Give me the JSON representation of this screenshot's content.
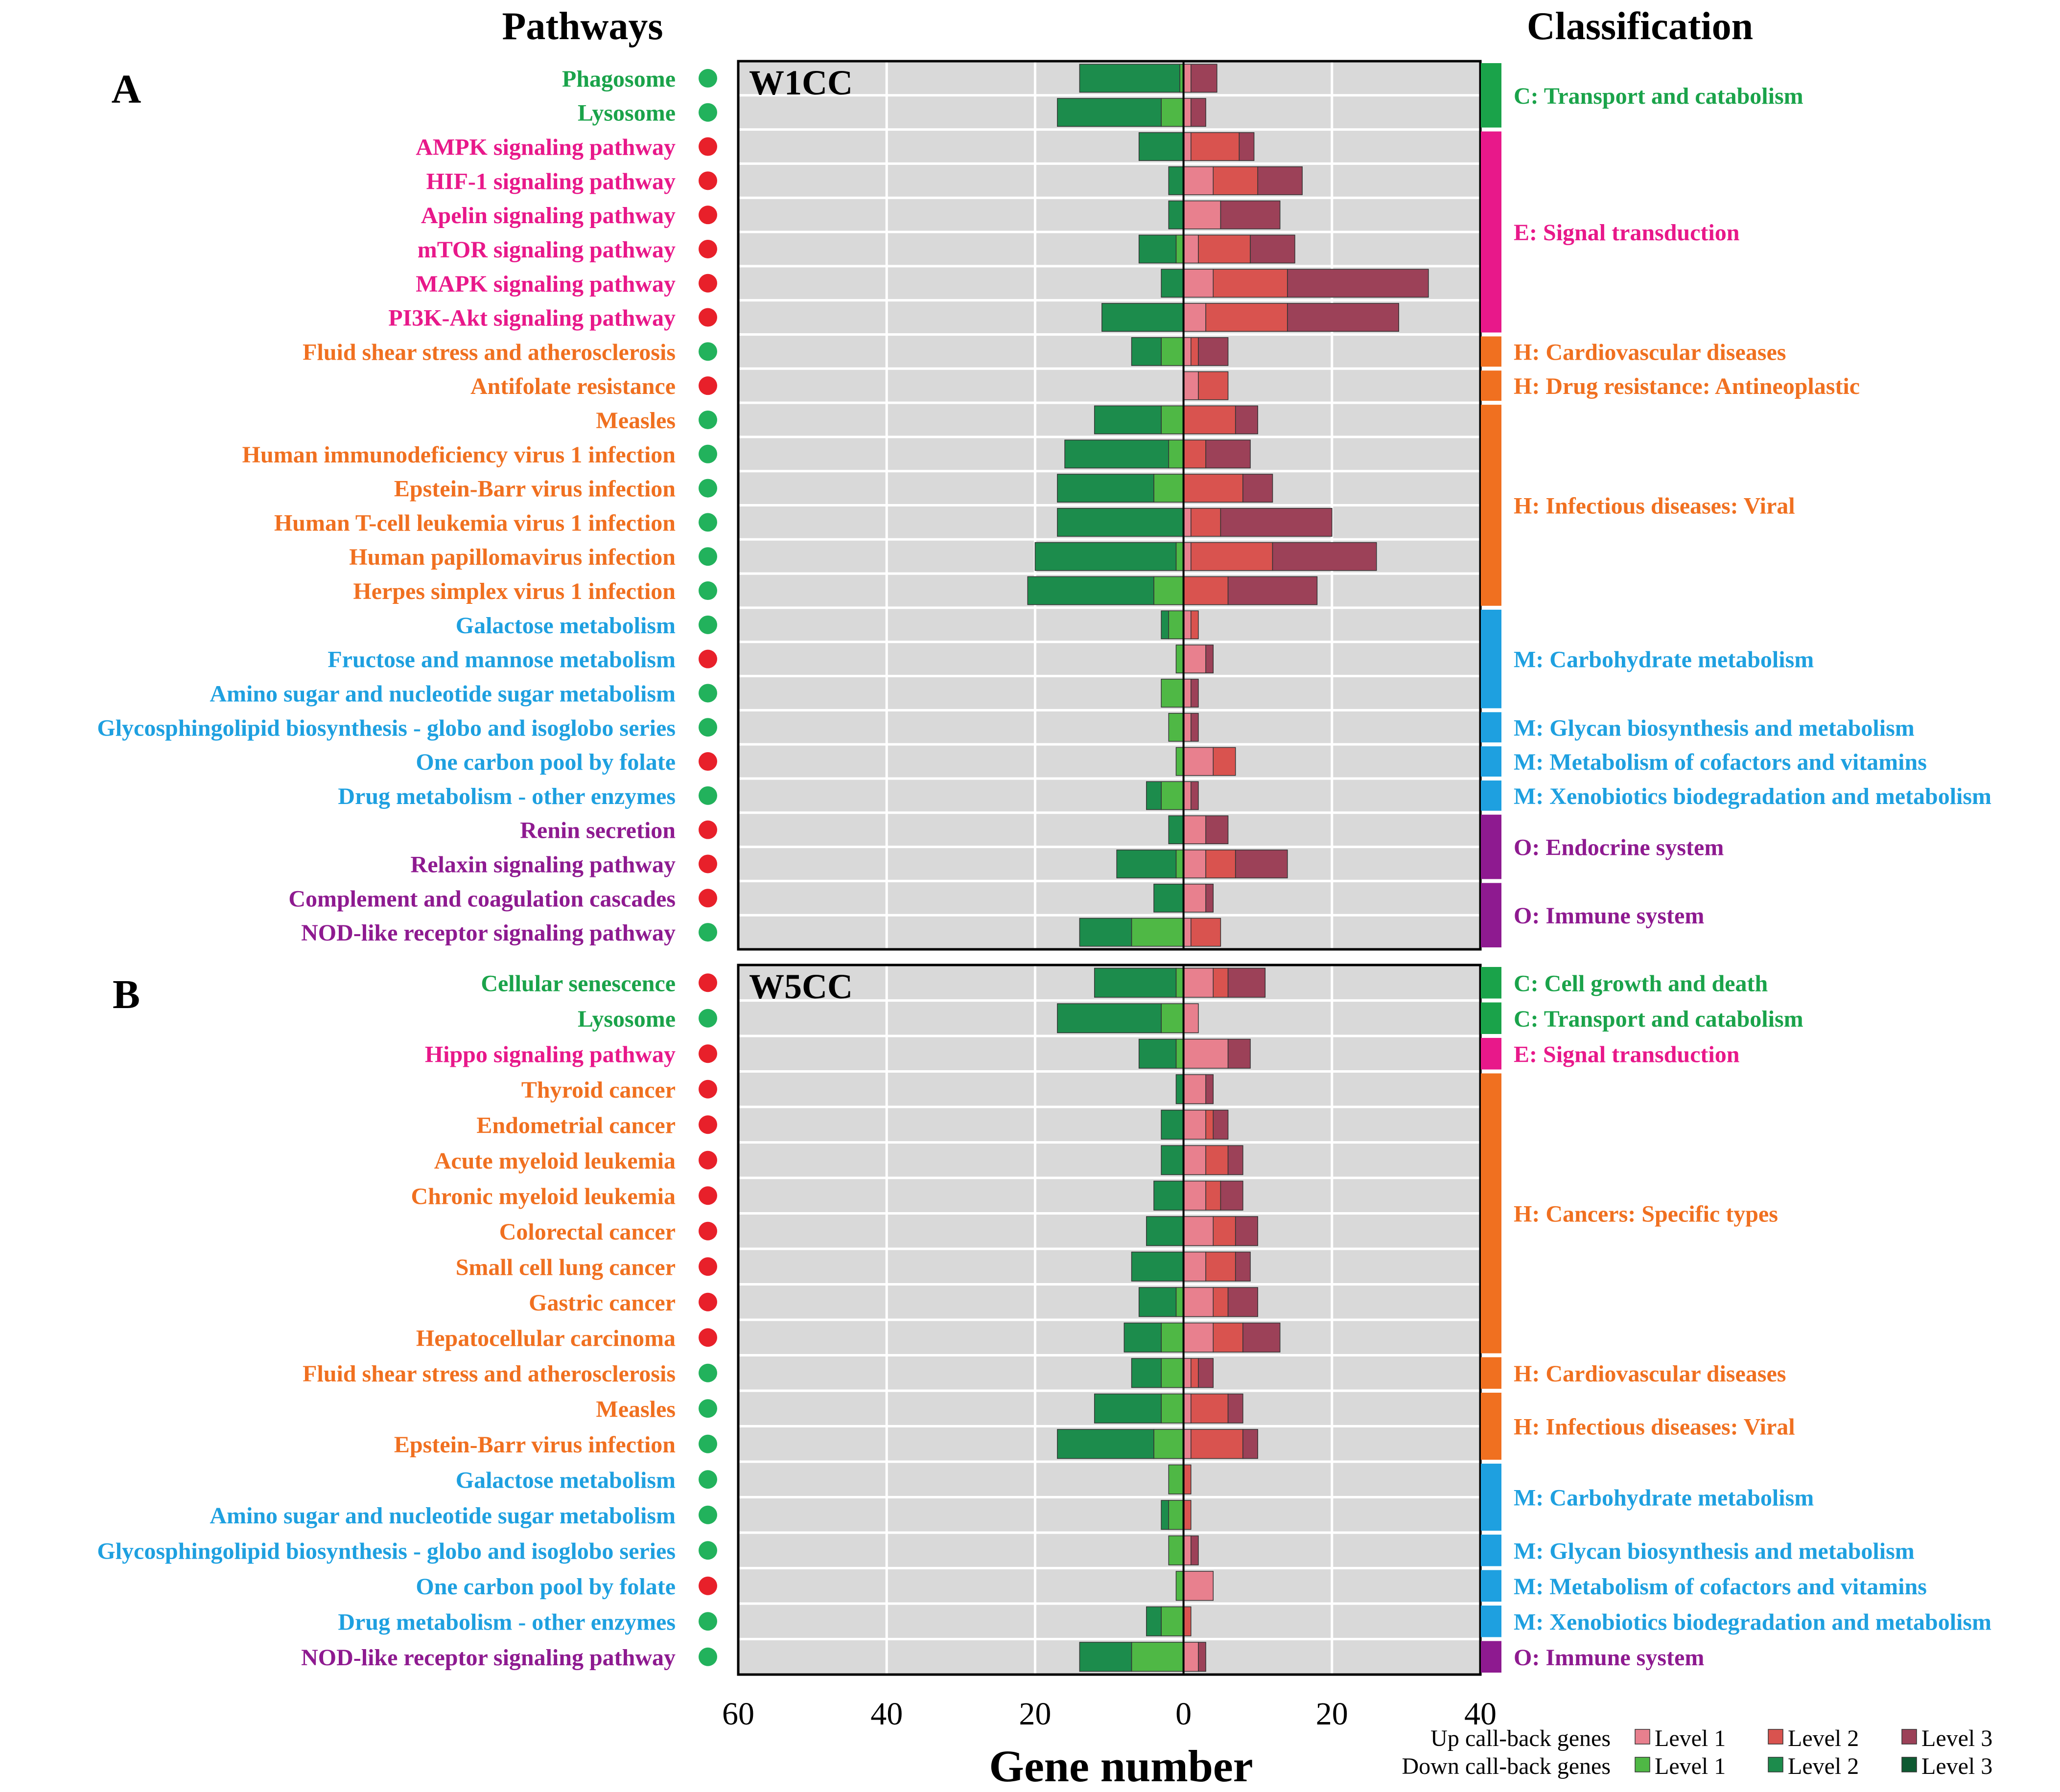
{
  "headers": {
    "pathways": "Pathways",
    "classification": "Classification"
  },
  "colors": {
    "green": "#1aa34a",
    "magenta": "#e8188a",
    "orange": "#f07020",
    "blue": "#1ea0e0",
    "purple": "#8e1a90",
    "dot_red": "#e8202a",
    "dot_green": "#22b25c",
    "plot_bg": "#d9d9d9",
    "up1": "#e8808e",
    "up2": "#d9534f",
    "up3": "#9c4158",
    "down1": "#4fb845",
    "down2": "#1c8c4c",
    "down3": "#0e5a32"
  },
  "chart_data": [
    {
      "type": "bar",
      "panel_letter": "A",
      "title": "W1CC",
      "xlabel": "Gene number",
      "xlim": [
        -60,
        40
      ],
      "x_tick_values": [
        -60,
        -40,
        -20,
        0,
        20,
        40
      ],
      "x_tick_labels": [
        "60",
        "40",
        "20",
        "0",
        "20",
        "40"
      ],
      "series": [
        "Up Level 1",
        "Up Level 2",
        "Up Level 3",
        "Down Level 1",
        "Down Level 2",
        "Down Level 3"
      ],
      "rows": [
        {
          "label": "Phagosome",
          "color": "green",
          "dot": "green",
          "down": [
            0.5,
            13.5,
            0
          ],
          "up": [
            1,
            0,
            3.5
          ]
        },
        {
          "label": "Lysosome",
          "color": "green",
          "dot": "green",
          "down": [
            3,
            14,
            0
          ],
          "up": [
            1,
            0,
            2
          ]
        },
        {
          "label": "AMPK signaling pathway",
          "color": "magenta",
          "dot": "red",
          "down": [
            0,
            6,
            0
          ],
          "up": [
            1,
            6.5,
            2
          ]
        },
        {
          "label": "HIF-1 signaling pathway",
          "color": "magenta",
          "dot": "red",
          "down": [
            0,
            2,
            0
          ],
          "up": [
            4,
            6,
            6
          ]
        },
        {
          "label": "Apelin signaling pathway",
          "color": "magenta",
          "dot": "red",
          "down": [
            0,
            2,
            0
          ],
          "up": [
            5,
            0,
            8
          ]
        },
        {
          "label": "mTOR signaling pathway",
          "color": "magenta",
          "dot": "red",
          "down": [
            1,
            5,
            0
          ],
          "up": [
            2,
            7,
            6
          ]
        },
        {
          "label": "MAPK signaling pathway",
          "color": "magenta",
          "dot": "red",
          "down": [
            0,
            3,
            0
          ],
          "up": [
            4,
            10,
            19
          ]
        },
        {
          "label": "PI3K-Akt signaling pathway",
          "color": "magenta",
          "dot": "red",
          "down": [
            0,
            11,
            0
          ],
          "up": [
            3,
            11,
            15
          ]
        },
        {
          "label": "Fluid shear stress and atherosclerosis",
          "color": "orange",
          "dot": "green",
          "down": [
            3,
            4,
            0
          ],
          "up": [
            1,
            1,
            4
          ]
        },
        {
          "label": "Antifolate resistance",
          "color": "orange",
          "dot": "red",
          "down": [
            0,
            0,
            0
          ],
          "up": [
            2,
            4,
            0
          ]
        },
        {
          "label": "Measles",
          "color": "orange",
          "dot": "green",
          "down": [
            3,
            9,
            0
          ],
          "up": [
            0,
            7,
            3
          ]
        },
        {
          "label": "Human immunodeficiency virus 1 infection",
          "color": "orange",
          "dot": "green",
          "down": [
            2,
            14,
            0
          ],
          "up": [
            0,
            3,
            6
          ]
        },
        {
          "label": "Epstein-Barr virus infection",
          "color": "orange",
          "dot": "green",
          "down": [
            4,
            13,
            0
          ],
          "up": [
            0,
            8,
            4
          ]
        },
        {
          "label": "Human T-cell leukemia virus 1 infection",
          "color": "orange",
          "dot": "green",
          "down": [
            0,
            17,
            0
          ],
          "up": [
            1,
            4,
            15
          ]
        },
        {
          "label": "Human papillomavirus infection",
          "color": "orange",
          "dot": "green",
          "down": [
            1,
            19,
            0
          ],
          "up": [
            1,
            11,
            14
          ]
        },
        {
          "label": "Herpes simplex virus 1 infection",
          "color": "orange",
          "dot": "green",
          "down": [
            4,
            17,
            0
          ],
          "up": [
            0,
            6,
            12
          ]
        },
        {
          "label": "Galactose metabolism",
          "color": "blue",
          "dot": "green",
          "down": [
            2,
            1,
            0
          ],
          "up": [
            1,
            1,
            0
          ]
        },
        {
          "label": "Fructose and mannose metabolism",
          "color": "blue",
          "dot": "red",
          "down": [
            1,
            0,
            0
          ],
          "up": [
            3,
            0,
            1
          ]
        },
        {
          "label": "Amino sugar and nucleotide sugar metabolism",
          "color": "blue",
          "dot": "green",
          "down": [
            3,
            0,
            0
          ],
          "up": [
            1,
            0,
            1
          ]
        },
        {
          "label": "Glycosphingolipid biosynthesis - globo and isoglobo series",
          "color": "blue",
          "dot": "green",
          "down": [
            2,
            0,
            0
          ],
          "up": [
            1,
            0,
            1
          ]
        },
        {
          "label": "One carbon pool by folate",
          "color": "blue",
          "dot": "red",
          "down": [
            1,
            0,
            0
          ],
          "up": [
            4,
            3,
            0
          ]
        },
        {
          "label": "Drug metabolism - other enzymes",
          "color": "blue",
          "dot": "green",
          "down": [
            3,
            2,
            0
          ],
          "up": [
            1,
            0,
            1
          ]
        },
        {
          "label": "Renin secretion",
          "color": "purple",
          "dot": "red",
          "down": [
            0,
            2,
            0
          ],
          "up": [
            3,
            0,
            3
          ]
        },
        {
          "label": "Relaxin signaling pathway",
          "color": "purple",
          "dot": "red",
          "down": [
            1,
            8,
            0
          ],
          "up": [
            3,
            4,
            7
          ]
        },
        {
          "label": "Complement and coagulation cascades",
          "color": "purple",
          "dot": "red",
          "down": [
            0,
            4,
            0
          ],
          "up": [
            3,
            0,
            1
          ]
        },
        {
          "label": "NOD-like receptor signaling pathway",
          "color": "purple",
          "dot": "green",
          "down": [
            7,
            7,
            0
          ],
          "up": [
            1,
            4,
            0
          ]
        }
      ],
      "groups": [
        {
          "label": "C: Transport and catabolism",
          "color": "green",
          "start": 0,
          "end": 1
        },
        {
          "label": "E: Signal transduction",
          "color": "magenta",
          "start": 2,
          "end": 7
        },
        {
          "label": "H: Cardiovascular diseases",
          "color": "orange",
          "start": 8,
          "end": 8
        },
        {
          "label": "H: Drug resistance: Antineoplastic",
          "color": "orange",
          "start": 9,
          "end": 9
        },
        {
          "label": "H: Infectious diseases: Viral",
          "color": "orange",
          "start": 10,
          "end": 15
        },
        {
          "label": "M: Carbohydrate metabolism",
          "color": "blue",
          "start": 16,
          "end": 18
        },
        {
          "label": "M: Glycan biosynthesis and metabolism",
          "color": "blue",
          "start": 19,
          "end": 19
        },
        {
          "label": "M: Metabolism of cofactors and vitamins",
          "color": "blue",
          "start": 20,
          "end": 20
        },
        {
          "label": "M: Xenobiotics biodegradation and metabolism",
          "color": "blue",
          "start": 21,
          "end": 21
        },
        {
          "label": "O: Endocrine system",
          "color": "purple",
          "start": 22,
          "end": 23
        },
        {
          "label": "O: Immune system",
          "color": "purple",
          "start": 24,
          "end": 25
        }
      ]
    },
    {
      "type": "bar",
      "panel_letter": "B",
      "title": "W5CC",
      "xlabel": "Gene number",
      "xlim": [
        -60,
        40
      ],
      "x_tick_values": [
        -60,
        -40,
        -20,
        0,
        20,
        40
      ],
      "x_tick_labels": [
        "60",
        "40",
        "20",
        "0",
        "20",
        "40"
      ],
      "series": [
        "Up Level 1",
        "Up Level 2",
        "Up Level 3",
        "Down Level 1",
        "Down Level 2",
        "Down Level 3"
      ],
      "rows": [
        {
          "label": "Cellular senescence",
          "color": "green",
          "dot": "red",
          "down": [
            1,
            11,
            0
          ],
          "up": [
            4,
            2,
            5
          ]
        },
        {
          "label": "Lysosome",
          "color": "green",
          "dot": "green",
          "down": [
            3,
            14,
            0
          ],
          "up": [
            2,
            0,
            0
          ]
        },
        {
          "label": "Hippo signaling pathway",
          "color": "magenta",
          "dot": "red",
          "down": [
            1,
            5,
            0
          ],
          "up": [
            6,
            0,
            3
          ]
        },
        {
          "label": "Thyroid cancer",
          "color": "orange",
          "dot": "red",
          "down": [
            0,
            1,
            0
          ],
          "up": [
            3,
            0,
            1
          ]
        },
        {
          "label": "Endometrial cancer",
          "color": "orange",
          "dot": "red",
          "down": [
            0,
            3,
            0
          ],
          "up": [
            3,
            1,
            2
          ]
        },
        {
          "label": "Acute myeloid leukemia",
          "color": "orange",
          "dot": "red",
          "down": [
            0,
            3,
            0
          ],
          "up": [
            3,
            3,
            2
          ]
        },
        {
          "label": "Chronic myeloid leukemia",
          "color": "orange",
          "dot": "red",
          "down": [
            0,
            4,
            0
          ],
          "up": [
            3,
            2,
            3
          ]
        },
        {
          "label": "Colorectal cancer",
          "color": "orange",
          "dot": "red",
          "down": [
            0,
            5,
            0
          ],
          "up": [
            4,
            3,
            3
          ]
        },
        {
          "label": "Small cell lung cancer",
          "color": "orange",
          "dot": "red",
          "down": [
            0,
            7,
            0
          ],
          "up": [
            3,
            4,
            2
          ]
        },
        {
          "label": "Gastric cancer",
          "color": "orange",
          "dot": "red",
          "down": [
            1,
            5,
            0
          ],
          "up": [
            4,
            2,
            4
          ]
        },
        {
          "label": "Hepatocellular carcinoma",
          "color": "orange",
          "dot": "red",
          "down": [
            3,
            5,
            0
          ],
          "up": [
            4,
            4,
            5
          ]
        },
        {
          "label": "Fluid shear stress and atherosclerosis",
          "color": "orange",
          "dot": "green",
          "down": [
            3,
            4,
            0
          ],
          "up": [
            1,
            1,
            2
          ]
        },
        {
          "label": "Measles",
          "color": "orange",
          "dot": "green",
          "down": [
            3,
            9,
            0
          ],
          "up": [
            1,
            5,
            2
          ]
        },
        {
          "label": "Epstein-Barr virus infection",
          "color": "orange",
          "dot": "green",
          "down": [
            4,
            13,
            0
          ],
          "up": [
            1,
            7,
            2
          ]
        },
        {
          "label": "Galactose metabolism",
          "color": "blue",
          "dot": "green",
          "down": [
            2,
            0,
            0
          ],
          "up": [
            0,
            1,
            0
          ]
        },
        {
          "label": "Amino sugar and nucleotide sugar metabolism",
          "color": "blue",
          "dot": "green",
          "down": [
            2,
            1,
            0
          ],
          "up": [
            0,
            1,
            0
          ]
        },
        {
          "label": "Glycosphingolipid biosynthesis - globo and isoglobo series",
          "color": "blue",
          "dot": "green",
          "down": [
            2,
            0,
            0
          ],
          "up": [
            1,
            0,
            1
          ]
        },
        {
          "label": "One carbon pool by folate",
          "color": "blue",
          "dot": "red",
          "down": [
            1,
            0,
            0
          ],
          "up": [
            4,
            0,
            0
          ]
        },
        {
          "label": "Drug metabolism - other enzymes",
          "color": "blue",
          "dot": "green",
          "down": [
            3,
            2,
            0
          ],
          "up": [
            0,
            1,
            0
          ]
        },
        {
          "label": "NOD-like receptor signaling pathway",
          "color": "purple",
          "dot": "green",
          "down": [
            7,
            7,
            0
          ],
          "up": [
            2,
            0,
            1
          ]
        }
      ],
      "groups": [
        {
          "label": "C: Cell growth and death",
          "color": "green",
          "start": 0,
          "end": 0
        },
        {
          "label": "C: Transport and catabolism",
          "color": "green",
          "start": 1,
          "end": 1
        },
        {
          "label": "E: Signal transduction",
          "color": "magenta",
          "start": 2,
          "end": 2
        },
        {
          "label": "H: Cancers: Specific types",
          "color": "orange",
          "start": 3,
          "end": 10
        },
        {
          "label": "H: Cardiovascular diseases",
          "color": "orange",
          "start": 11,
          "end": 11
        },
        {
          "label": "H: Infectious diseases: Viral",
          "color": "orange",
          "start": 12,
          "end": 13
        },
        {
          "label": "M: Carbohydrate metabolism",
          "color": "blue",
          "start": 14,
          "end": 15
        },
        {
          "label": "M: Glycan biosynthesis and metabolism",
          "color": "blue",
          "start": 16,
          "end": 16
        },
        {
          "label": "M: Metabolism of cofactors and vitamins",
          "color": "blue",
          "start": 17,
          "end": 17
        },
        {
          "label": "M: Xenobiotics biodegradation and metabolism",
          "color": "blue",
          "start": 18,
          "end": 18
        },
        {
          "label": "O: Immune system",
          "color": "purple",
          "start": 19,
          "end": 19
        }
      ]
    }
  ],
  "axis": {
    "xlabel": "Gene number",
    "tick_labels": [
      "60",
      "40",
      "20",
      "0",
      "20",
      "40"
    ]
  },
  "legend": {
    "up_label": "Up call-back genes",
    "down_label": "Down call-back genes",
    "levels": [
      "Level 1",
      "Level 2",
      "Level 3"
    ]
  }
}
